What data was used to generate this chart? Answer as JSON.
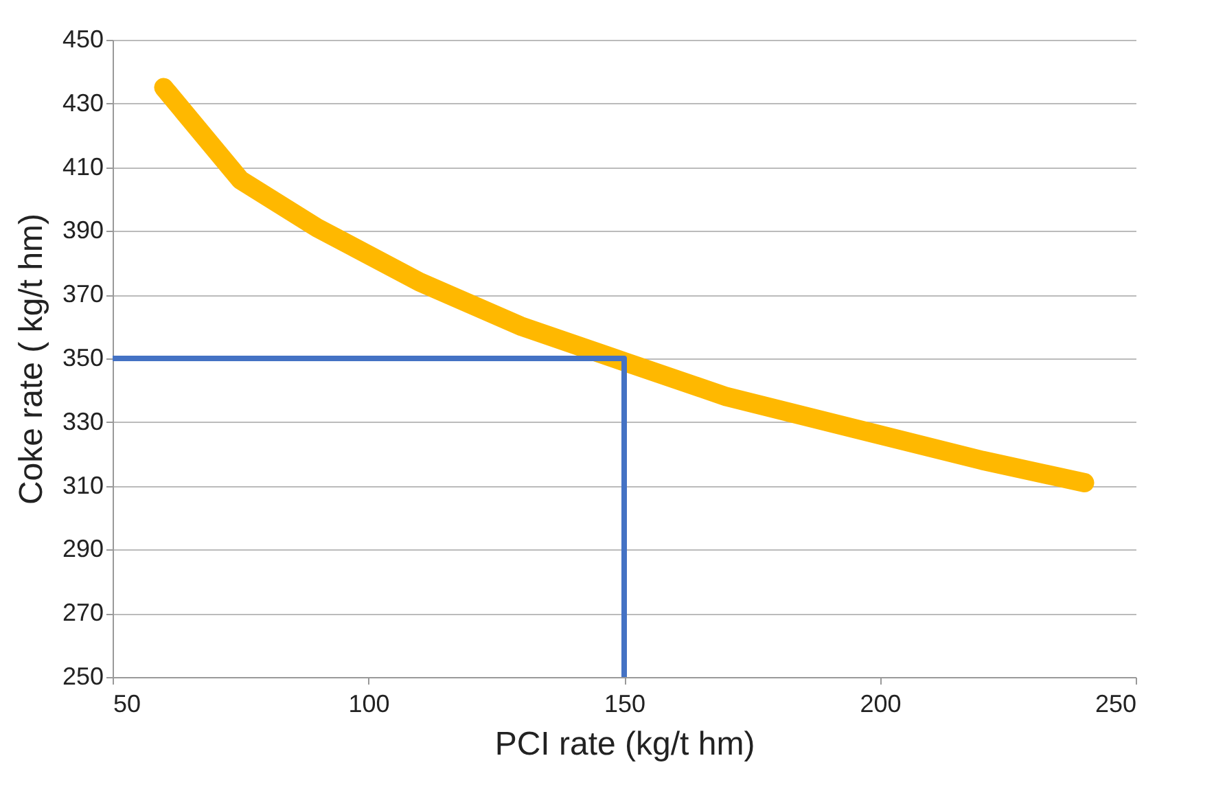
{
  "chart_data": {
    "type": "line",
    "xlabel": "PCI rate (kg/t hm)",
    "ylabel": "Coke  rate ( kg/t hm)",
    "xlim": [
      50,
      250
    ],
    "xticks": [
      50,
      100,
      150,
      200,
      250
    ],
    "ylim": [
      250,
      450
    ],
    "yticks": [
      250,
      270,
      290,
      310,
      330,
      350,
      370,
      390,
      410,
      430,
      450
    ],
    "grid": "y",
    "line_style": "solid",
    "marker": "none",
    "series": [
      {
        "color": "#ffb800",
        "x": [
          60,
          75,
          90,
          110,
          130,
          150,
          170,
          195,
          220,
          240
        ],
        "values": [
          435,
          406,
          391,
          374,
          360,
          349,
          338,
          328,
          318,
          311
        ]
      },
      {
        "color": "#4472c4",
        "x": [
          50,
          150,
          150
        ],
        "values": [
          350,
          350,
          250
        ]
      }
    ]
  }
}
